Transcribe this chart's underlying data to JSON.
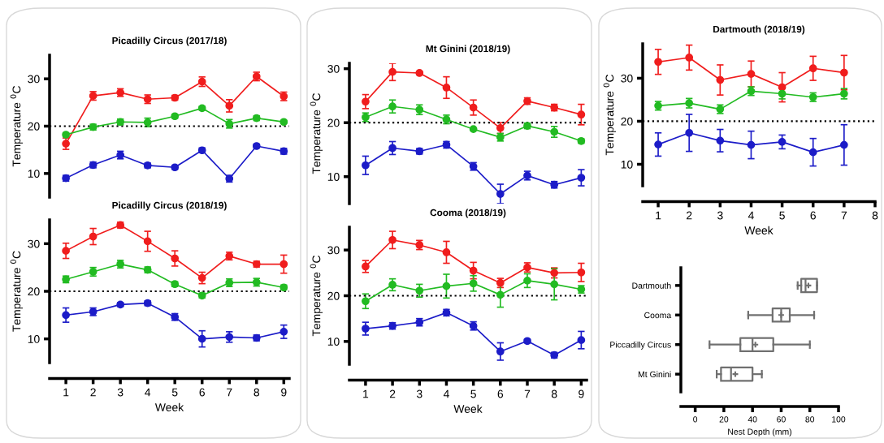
{
  "chart_data": [
    {
      "type": "line",
      "title": "Picadilly Circus (2017/18)",
      "ylabel": "Temperature $^{0}$C",
      "x": [
        1,
        2,
        3,
        4,
        5,
        6,
        7,
        8,
        9
      ],
      "xlim": [
        0.4,
        9.2
      ],
      "xticks": [
        1,
        2,
        3,
        4,
        5,
        6,
        7,
        8,
        9
      ],
      "ylim": [
        5,
        35
      ],
      "yticks": [
        10,
        20,
        30
      ],
      "tick_labels": "y",
      "marker": "circle",
      "grid": false,
      "legend": false,
      "series": [
        {
          "color": "#f01d1d",
          "values": [
            16.3,
            26.4,
            27.1,
            25.7,
            26.0,
            29.4,
            24.3,
            30.5,
            26.3
          ],
          "errors": [
            1.2,
            0.9,
            0.8,
            0.9,
            0.5,
            1.0,
            1.3,
            0.9,
            0.9
          ]
        },
        {
          "color": "#22bb22",
          "values": [
            18.2,
            19.8,
            20.9,
            20.8,
            22.1,
            23.8,
            20.5,
            21.7,
            20.9
          ],
          "errors": [
            0.4,
            0.6,
            0.6,
            0.9,
            0.4,
            0.4,
            0.9,
            0.5,
            0.3
          ]
        },
        {
          "color": "#1c1cc8",
          "values": [
            9.0,
            11.8,
            13.9,
            11.7,
            11.3,
            14.9,
            8.9,
            15.8,
            14.7
          ],
          "errors": [
            0.6,
            0.6,
            0.8,
            0.5,
            0.4,
            0.5,
            0.7,
            0.4,
            0.6
          ]
        }
      ],
      "ref_lines": [
        {
          "axis": "y",
          "value": 20,
          "color": "#000000",
          "line_style": "dotted"
        }
      ]
    },
    {
      "type": "line",
      "title": "Picadilly Circus (2018/19)",
      "ylabel": "Temperature $^{0}$C",
      "xlabel": "Week",
      "x": [
        1,
        2,
        3,
        4,
        5,
        6,
        7,
        8,
        9
      ],
      "xlim": [
        0.4,
        9.2
      ],
      "xticks": [
        1,
        2,
        3,
        4,
        5,
        6,
        7,
        8,
        9
      ],
      "ylim": [
        5,
        35
      ],
      "yticks": [
        10,
        20,
        30
      ],
      "marker": "circle",
      "grid": false,
      "legend": false,
      "series": [
        {
          "color": "#f01d1d",
          "values": [
            28.5,
            31.5,
            33.9,
            30.5,
            26.9,
            22.8,
            27.4,
            25.7,
            25.7
          ],
          "errors": [
            1.6,
            1.7,
            0.6,
            2.1,
            1.6,
            1.2,
            0.8,
            0.6,
            1.9
          ]
        },
        {
          "color": "#22bb22",
          "values": [
            22.5,
            24.1,
            25.7,
            24.5,
            21.5,
            19.1,
            21.8,
            21.9,
            20.8
          ],
          "errors": [
            0.7,
            0.9,
            0.8,
            0.6,
            0.5,
            0.5,
            0.8,
            0.8,
            0.5
          ]
        },
        {
          "color": "#1c1cc8",
          "values": [
            15.0,
            15.7,
            17.2,
            17.5,
            14.6,
            10.0,
            10.4,
            10.2,
            11.5
          ],
          "errors": [
            1.5,
            0.8,
            0.4,
            0.5,
            0.7,
            1.7,
            1.1,
            0.6,
            1.4
          ]
        }
      ],
      "ref_lines": [
        {
          "axis": "y",
          "value": 20,
          "color": "#000000",
          "line_style": "dotted"
        }
      ]
    },
    {
      "type": "line",
      "title": "Mt Ginini (2018/19)",
      "ylabel": "Temperature $^{0}$C",
      "x": [
        1,
        2,
        3,
        4,
        5,
        6,
        7,
        8,
        9
      ],
      "xlim": [
        0.4,
        9.2
      ],
      "xticks": [
        1,
        2,
        3,
        4,
        5,
        6,
        7,
        8,
        9
      ],
      "ylim": [
        5,
        31
      ],
      "yticks": [
        10,
        20,
        30
      ],
      "tick_labels": "y",
      "marker": "circle",
      "grid": false,
      "legend": false,
      "series": [
        {
          "color": "#f01d1d",
          "values": [
            23.9,
            29.4,
            29.2,
            26.5,
            22.8,
            19.0,
            24.0,
            22.8,
            21.5
          ],
          "errors": [
            1.3,
            1.6,
            0.3,
            2.0,
            1.4,
            1.0,
            0.6,
            0.6,
            1.9
          ]
        },
        {
          "color": "#22bb22",
          "values": [
            21.0,
            23.0,
            22.4,
            20.6,
            18.8,
            17.3,
            19.4,
            18.3,
            16.6
          ],
          "errors": [
            0.8,
            1.2,
            0.9,
            0.8,
            0.2,
            0.7,
            0.5,
            1.0,
            0.4
          ]
        },
        {
          "color": "#1c1cc8",
          "values": [
            12.1,
            15.3,
            14.7,
            15.9,
            11.9,
            6.8,
            10.2,
            8.5,
            9.8
          ],
          "errors": [
            1.7,
            1.2,
            0.5,
            0.6,
            0.7,
            1.8,
            0.8,
            0.6,
            1.5
          ]
        }
      ],
      "ref_lines": [
        {
          "axis": "y",
          "value": 20,
          "color": "#000000",
          "line_style": "dotted"
        }
      ]
    },
    {
      "type": "line",
      "title": "Cooma (2018/19)",
      "ylabel": "Temperature $^{0}$C",
      "xlabel": "Week",
      "x": [
        1,
        2,
        3,
        4,
        5,
        6,
        7,
        8,
        9
      ],
      "xlim": [
        0.4,
        9.2
      ],
      "xticks": [
        1,
        2,
        3,
        4,
        5,
        6,
        7,
        8,
        9
      ],
      "ylim": [
        5,
        35
      ],
      "yticks": [
        10,
        20,
        30
      ],
      "marker": "circle",
      "grid": false,
      "legend": false,
      "series": [
        {
          "color": "#f01d1d",
          "values": [
            26.4,
            32.2,
            31.1,
            29.5,
            25.5,
            22.8,
            26.2,
            25.0,
            25.1
          ],
          "errors": [
            1.3,
            1.9,
            1.0,
            2.4,
            1.8,
            1.0,
            1.0,
            1.1,
            2.0
          ]
        },
        {
          "color": "#22bb22",
          "values": [
            18.8,
            22.4,
            21.1,
            22.1,
            22.7,
            20.2,
            23.3,
            22.5,
            21.4
          ],
          "errors": [
            1.6,
            1.3,
            1.4,
            2.6,
            1.7,
            2.7,
            1.5,
            3.4,
            0.8
          ]
        },
        {
          "color": "#1c1cc8",
          "values": [
            12.8,
            13.4,
            14.2,
            16.3,
            13.4,
            7.8,
            10.1,
            7.0,
            10.3
          ],
          "errors": [
            1.4,
            0.7,
            0.8,
            0.7,
            0.9,
            1.9,
            0.4,
            0.6,
            1.9
          ]
        }
      ],
      "ref_lines": [
        {
          "axis": "y",
          "value": 20,
          "color": "#000000",
          "line_style": "dotted"
        }
      ]
    },
    {
      "type": "line",
      "title": "Dartmouth (2018/19)",
      "ylabel": "Temperature $^{0}$C",
      "xlabel": "Week",
      "x": [
        1,
        2,
        3,
        4,
        5,
        6,
        7
      ],
      "xlim": [
        0.5,
        8
      ],
      "xticks": [
        1,
        2,
        3,
        4,
        5,
        6,
        7,
        8
      ],
      "ylim": [
        5,
        38
      ],
      "yticks": [
        10,
        20,
        30
      ],
      "marker": "circle",
      "grid": false,
      "legend": false,
      "series": [
        {
          "color": "#f01d1d",
          "values": [
            33.8,
            34.8,
            29.6,
            31.0,
            27.9,
            32.3,
            31.3
          ],
          "errors": [
            2.9,
            2.9,
            3.5,
            3.0,
            3.4,
            2.8,
            4.0
          ]
        },
        {
          "color": "#22bb22",
          "values": [
            23.6,
            24.2,
            22.8,
            27.0,
            26.4,
            25.6,
            26.4
          ],
          "errors": [
            1.0,
            1.1,
            1.0,
            1.0,
            1.2,
            1.0,
            1.2
          ]
        },
        {
          "color": "#1c1cc8",
          "values": [
            14.6,
            17.3,
            15.5,
            14.5,
            15.2,
            12.8,
            14.5
          ],
          "errors": [
            2.7,
            4.3,
            2.6,
            3.2,
            1.6,
            3.2,
            4.7
          ]
        }
      ],
      "ref_lines": [
        {
          "axis": "y",
          "value": 20,
          "color": "#000000",
          "line_style": "dotted"
        }
      ]
    },
    {
      "type": "box",
      "orientation": "horizontal",
      "xlabel": "Nest Depth (mm)",
      "categories": [
        "Dartmouth",
        "Cooma",
        "Piccadilly Circus",
        "Mt Ginini"
      ],
      "xlim": [
        -10,
        100
      ],
      "xticks": [
        0,
        20,
        40,
        60,
        80,
        100
      ],
      "grid": false,
      "legend": false,
      "series": [
        {
          "color": "#707070",
          "boxes": [
            {
              "low": 71.5,
              "q1": 74,
              "median": 77,
              "q3": 85,
              "high": 85,
              "mean": 79
            },
            {
              "low": 37,
              "q1": 54,
              "median": 60,
              "q3": 66,
              "high": 83,
              "mean": 60
            },
            {
              "low": 10,
              "q1": 31.5,
              "median": 40,
              "q3": 54.5,
              "high": 80,
              "mean": 42
            },
            {
              "low": 15,
              "q1": 18,
              "median": 25,
              "q3": 40,
              "high": 46.5,
              "mean": 28
            }
          ]
        }
      ]
    }
  ]
}
